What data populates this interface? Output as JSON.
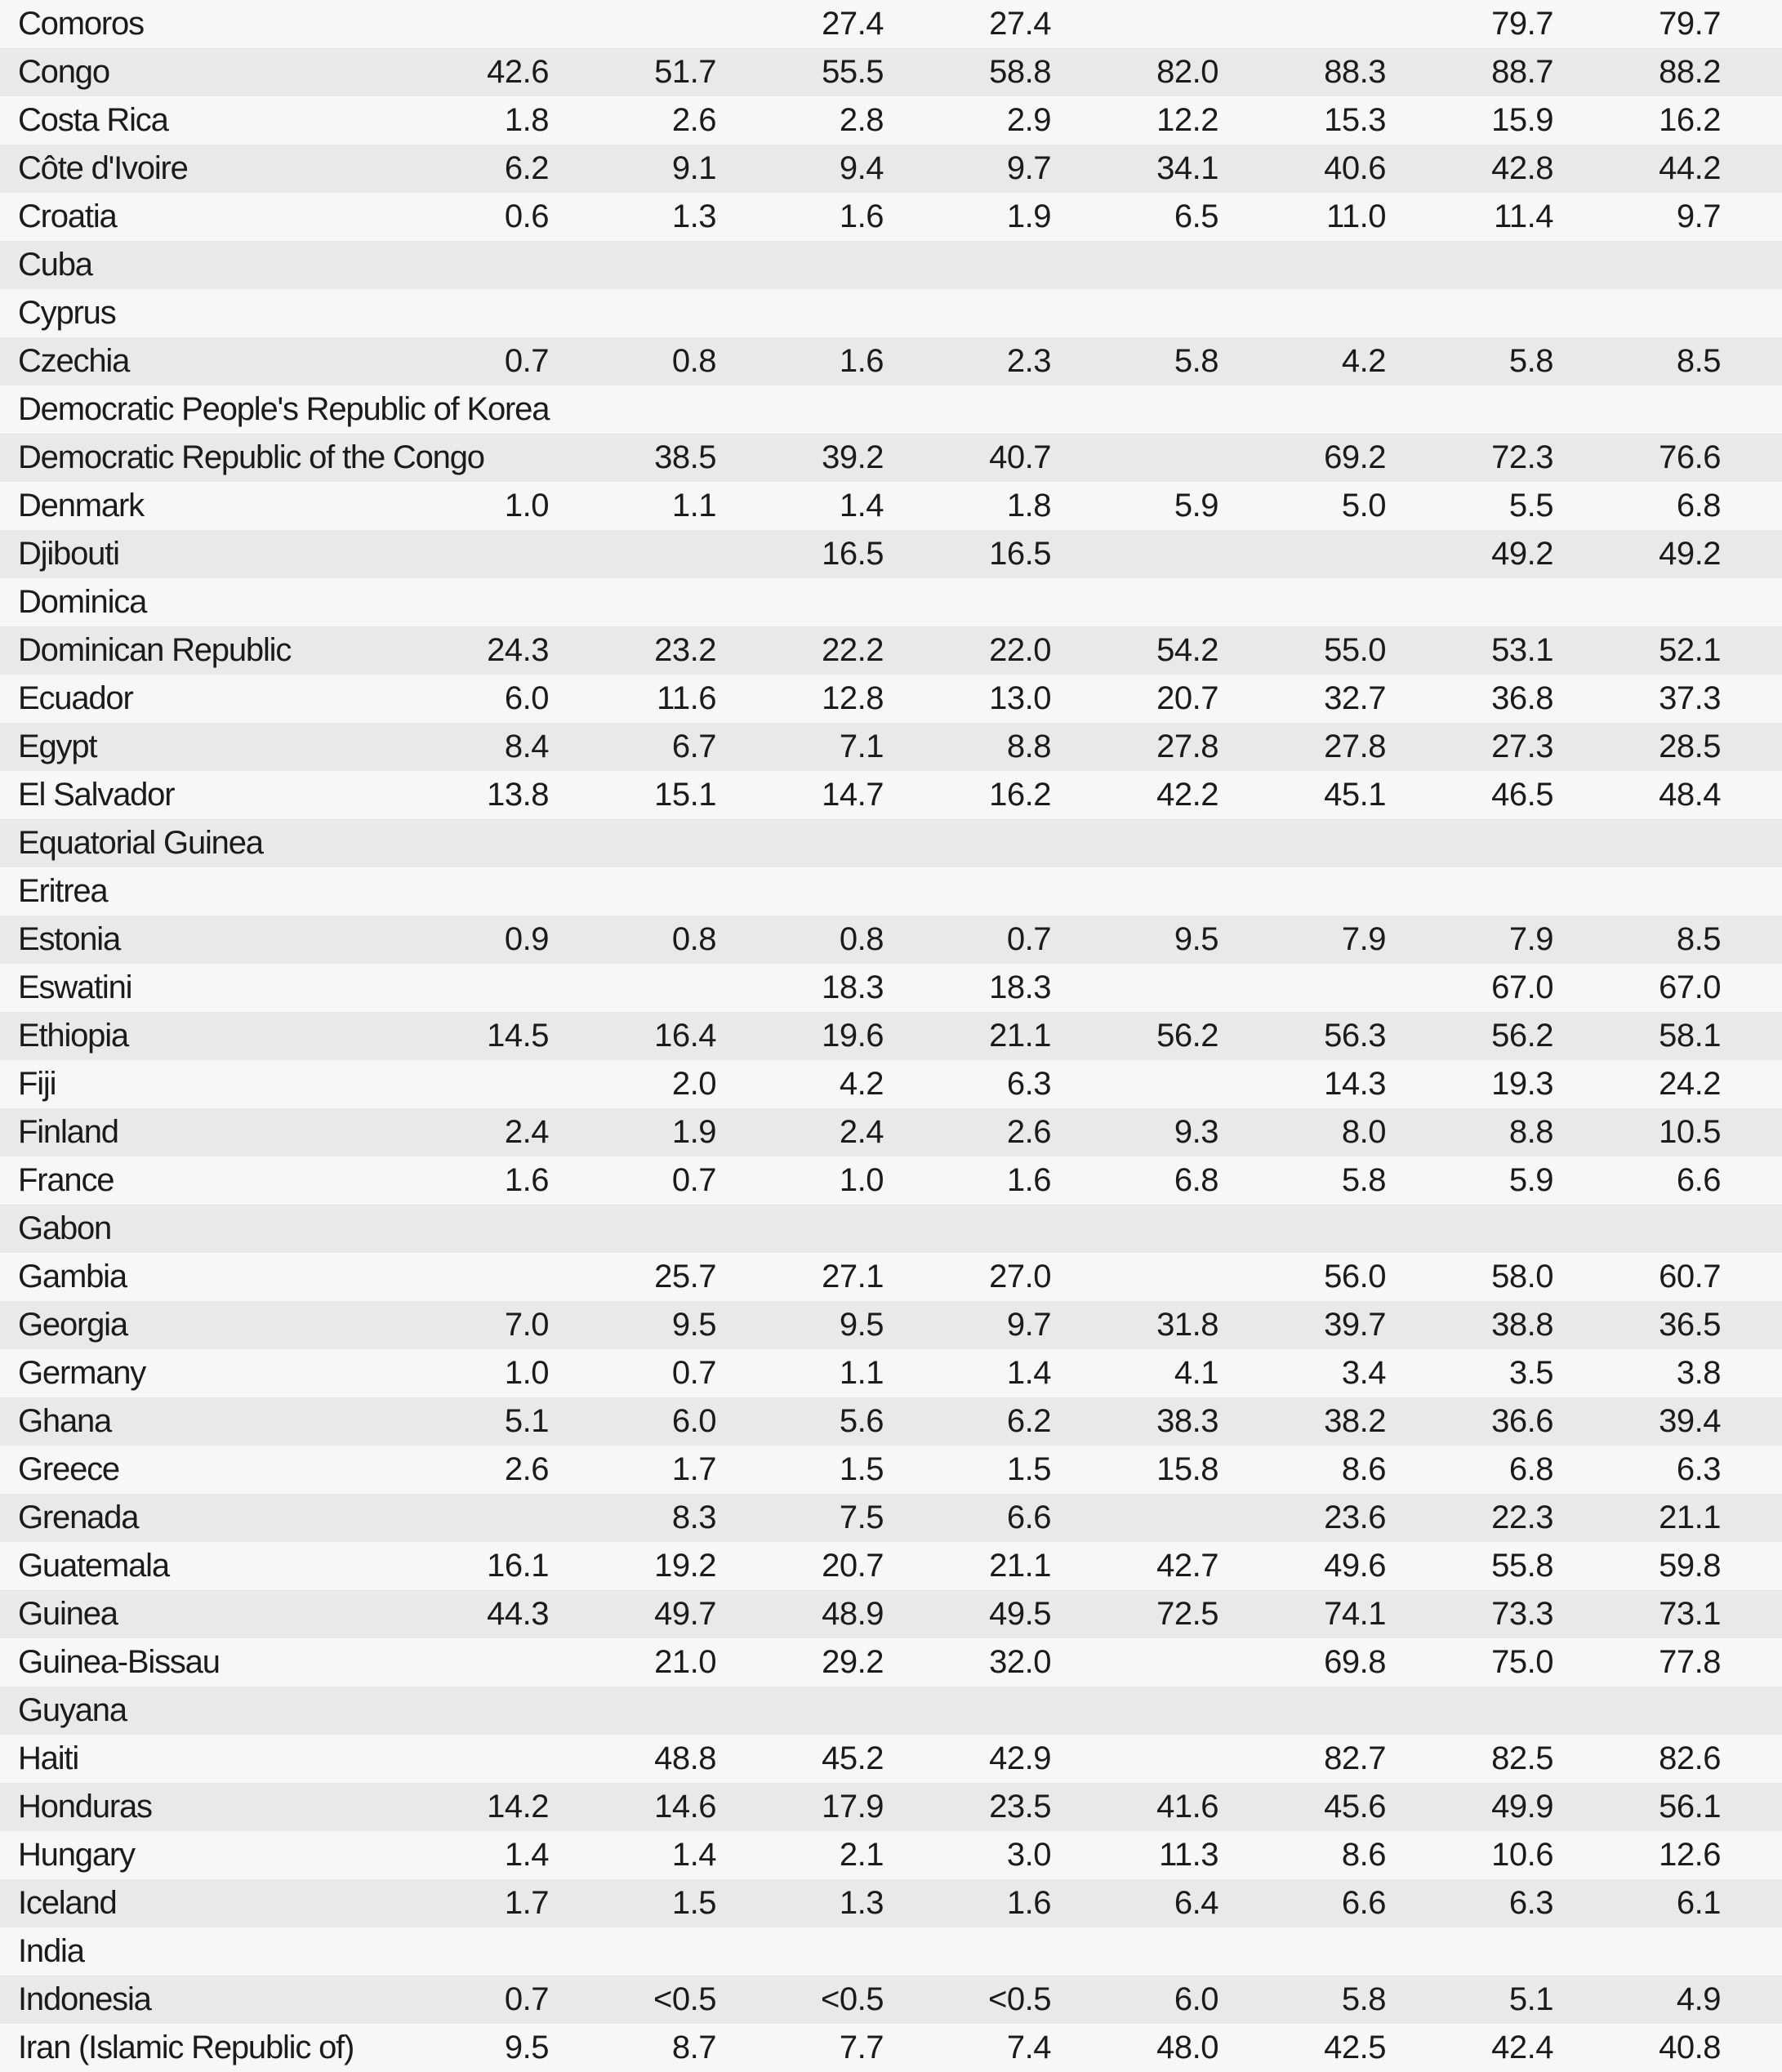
{
  "table": {
    "colors": {
      "row_light_bg": "#f7f7f7",
      "row_dark_bg": "#e9e9e9",
      "text": "#1b1b1b"
    },
    "num_value_columns": 8,
    "rows": [
      {
        "country": "Comoros",
        "values": [
          "",
          "",
          "27.4",
          "27.4",
          "",
          "",
          "79.7",
          "79.7"
        ]
      },
      {
        "country": "Congo",
        "values": [
          "42.6",
          "51.7",
          "55.5",
          "58.8",
          "82.0",
          "88.3",
          "88.7",
          "88.2"
        ]
      },
      {
        "country": "Costa Rica",
        "values": [
          "1.8",
          "2.6",
          "2.8",
          "2.9",
          "12.2",
          "15.3",
          "15.9",
          "16.2"
        ]
      },
      {
        "country": "Côte d'Ivoire",
        "values": [
          "6.2",
          "9.1",
          "9.4",
          "9.7",
          "34.1",
          "40.6",
          "42.8",
          "44.2"
        ]
      },
      {
        "country": "Croatia",
        "values": [
          "0.6",
          "1.3",
          "1.6",
          "1.9",
          "6.5",
          "11.0",
          "11.4",
          "9.7"
        ]
      },
      {
        "country": "Cuba",
        "values": [
          "",
          "",
          "",
          "",
          "",
          "",
          "",
          ""
        ]
      },
      {
        "country": "Cyprus",
        "values": [
          "",
          "",
          "",
          "",
          "",
          "",
          "",
          ""
        ]
      },
      {
        "country": "Czechia",
        "values": [
          "0.7",
          "0.8",
          "1.6",
          "2.3",
          "5.8",
          "4.2",
          "5.8",
          "8.5"
        ]
      },
      {
        "country": "Democratic People's Republic of Korea",
        "values": [
          "",
          "",
          "",
          "",
          "",
          "",
          "",
          ""
        ]
      },
      {
        "country": "Democratic Republic of the Congo",
        "values": [
          "",
          "38.5",
          "39.2",
          "40.7",
          "",
          "69.2",
          "72.3",
          "76.6"
        ]
      },
      {
        "country": "Denmark",
        "values": [
          "1.0",
          "1.1",
          "1.4",
          "1.8",
          "5.9",
          "5.0",
          "5.5",
          "6.8"
        ]
      },
      {
        "country": "Djibouti",
        "values": [
          "",
          "",
          "16.5",
          "16.5",
          "",
          "",
          "49.2",
          "49.2"
        ]
      },
      {
        "country": "Dominica",
        "values": [
          "",
          "",
          "",
          "",
          "",
          "",
          "",
          ""
        ]
      },
      {
        "country": "Dominican Republic",
        "values": [
          "24.3",
          "23.2",
          "22.2",
          "22.0",
          "54.2",
          "55.0",
          "53.1",
          "52.1"
        ]
      },
      {
        "country": "Ecuador",
        "values": [
          "6.0",
          "11.6",
          "12.8",
          "13.0",
          "20.7",
          "32.7",
          "36.8",
          "37.3"
        ]
      },
      {
        "country": "Egypt",
        "values": [
          "8.4",
          "6.7",
          "7.1",
          "8.8",
          "27.8",
          "27.8",
          "27.3",
          "28.5"
        ]
      },
      {
        "country": "El Salvador",
        "values": [
          "13.8",
          "15.1",
          "14.7",
          "16.2",
          "42.2",
          "45.1",
          "46.5",
          "48.4"
        ]
      },
      {
        "country": "Equatorial Guinea",
        "values": [
          "",
          "",
          "",
          "",
          "",
          "",
          "",
          ""
        ]
      },
      {
        "country": "Eritrea",
        "values": [
          "",
          "",
          "",
          "",
          "",
          "",
          "",
          ""
        ]
      },
      {
        "country": "Estonia",
        "values": [
          "0.9",
          "0.8",
          "0.8",
          "0.7",
          "9.5",
          "7.9",
          "7.9",
          "8.5"
        ]
      },
      {
        "country": "Eswatini",
        "values": [
          "",
          "",
          "18.3",
          "18.3",
          "",
          "",
          "67.0",
          "67.0"
        ]
      },
      {
        "country": "Ethiopia",
        "values": [
          "14.5",
          "16.4",
          "19.6",
          "21.1",
          "56.2",
          "56.3",
          "56.2",
          "58.1"
        ]
      },
      {
        "country": "Fiji",
        "values": [
          "",
          "2.0",
          "4.2",
          "6.3",
          "",
          "14.3",
          "19.3",
          "24.2"
        ]
      },
      {
        "country": "Finland",
        "values": [
          "2.4",
          "1.9",
          "2.4",
          "2.6",
          "9.3",
          "8.0",
          "8.8",
          "10.5"
        ]
      },
      {
        "country": "France",
        "values": [
          "1.6",
          "0.7",
          "1.0",
          "1.6",
          "6.8",
          "5.8",
          "5.9",
          "6.6"
        ]
      },
      {
        "country": "Gabon",
        "values": [
          "",
          "",
          "",
          "",
          "",
          "",
          "",
          ""
        ]
      },
      {
        "country": "Gambia",
        "values": [
          "",
          "25.7",
          "27.1",
          "27.0",
          "",
          "56.0",
          "58.0",
          "60.7"
        ]
      },
      {
        "country": "Georgia",
        "values": [
          "7.0",
          "9.5",
          "9.5",
          "9.7",
          "31.8",
          "39.7",
          "38.8",
          "36.5"
        ]
      },
      {
        "country": "Germany",
        "values": [
          "1.0",
          "0.7",
          "1.1",
          "1.4",
          "4.1",
          "3.4",
          "3.5",
          "3.8"
        ]
      },
      {
        "country": "Ghana",
        "values": [
          "5.1",
          "6.0",
          "5.6",
          "6.2",
          "38.3",
          "38.2",
          "36.6",
          "39.4"
        ]
      },
      {
        "country": "Greece",
        "values": [
          "2.6",
          "1.7",
          "1.5",
          "1.5",
          "15.8",
          "8.6",
          "6.8",
          "6.3"
        ]
      },
      {
        "country": "Grenada",
        "values": [
          "",
          "8.3",
          "7.5",
          "6.6",
          "",
          "23.6",
          "22.3",
          "21.1"
        ]
      },
      {
        "country": "Guatemala",
        "values": [
          "16.1",
          "19.2",
          "20.7",
          "21.1",
          "42.7",
          "49.6",
          "55.8",
          "59.8"
        ]
      },
      {
        "country": "Guinea",
        "values": [
          "44.3",
          "49.7",
          "48.9",
          "49.5",
          "72.5",
          "74.1",
          "73.3",
          "73.1"
        ]
      },
      {
        "country": "Guinea-Bissau",
        "values": [
          "",
          "21.0",
          "29.2",
          "32.0",
          "",
          "69.8",
          "75.0",
          "77.8"
        ]
      },
      {
        "country": "Guyana",
        "values": [
          "",
          "",
          "",
          "",
          "",
          "",
          "",
          ""
        ]
      },
      {
        "country": "Haiti",
        "values": [
          "",
          "48.8",
          "45.2",
          "42.9",
          "",
          "82.7",
          "82.5",
          "82.6"
        ]
      },
      {
        "country": "Honduras",
        "values": [
          "14.2",
          "14.6",
          "17.9",
          "23.5",
          "41.6",
          "45.6",
          "49.9",
          "56.1"
        ]
      },
      {
        "country": "Hungary",
        "values": [
          "1.4",
          "1.4",
          "2.1",
          "3.0",
          "11.3",
          "8.6",
          "10.6",
          "12.6"
        ]
      },
      {
        "country": "Iceland",
        "values": [
          "1.7",
          "1.5",
          "1.3",
          "1.6",
          "6.4",
          "6.6",
          "6.3",
          "6.1"
        ]
      },
      {
        "country": "India",
        "values": [
          "",
          "",
          "",
          "",
          "",
          "",
          "",
          ""
        ]
      },
      {
        "country": "Indonesia",
        "values": [
          "0.7",
          "<0.5",
          "<0.5",
          "<0.5",
          "6.0",
          "5.8",
          "5.1",
          "4.9"
        ]
      },
      {
        "country": "Iran (Islamic Republic of)",
        "values": [
          "9.5",
          "8.7",
          "7.7",
          "7.4",
          "48.0",
          "42.5",
          "42.4",
          "40.8"
        ]
      }
    ]
  }
}
